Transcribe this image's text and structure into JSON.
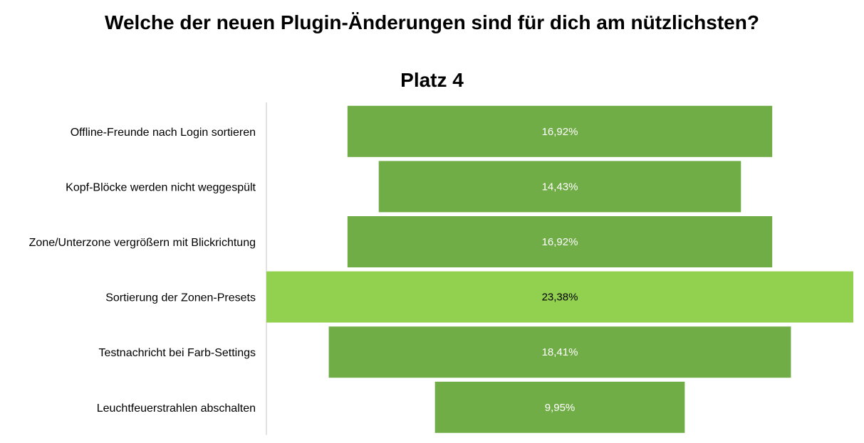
{
  "title": "Welche der neuen Plugin-Änderungen sind für dich am nützlichsten?",
  "subtitle": "Platz 4",
  "chart_data": {
    "type": "bar",
    "orientation": "horizontal",
    "layout": "centered-funnel",
    "categories": [
      "Offline-Freunde nach Login sortieren",
      "Kopf-Blöcke werden nicht weggespült",
      "Zone/Unterzone vergrößern mit Blickrichtung",
      "Sortierung der Zonen-Presets",
      "Testnachricht bei Farb-Settings",
      "Leuchtfeuerstrahlen abschalten"
    ],
    "values": [
      16.92,
      14.43,
      16.92,
      23.38,
      18.41,
      9.95
    ],
    "value_labels": [
      "16,92%",
      "14,43%",
      "16,92%",
      "23,38%",
      "18,41%",
      "9,95%"
    ],
    "highlight_index": 3,
    "colors": {
      "bar": "#70ad47",
      "highlight": "#92d050",
      "label_on_bar": "#ffffff",
      "label_on_highlight": "#000000",
      "axis": "#d9d9d9"
    },
    "legend": "none",
    "grid": false
  }
}
